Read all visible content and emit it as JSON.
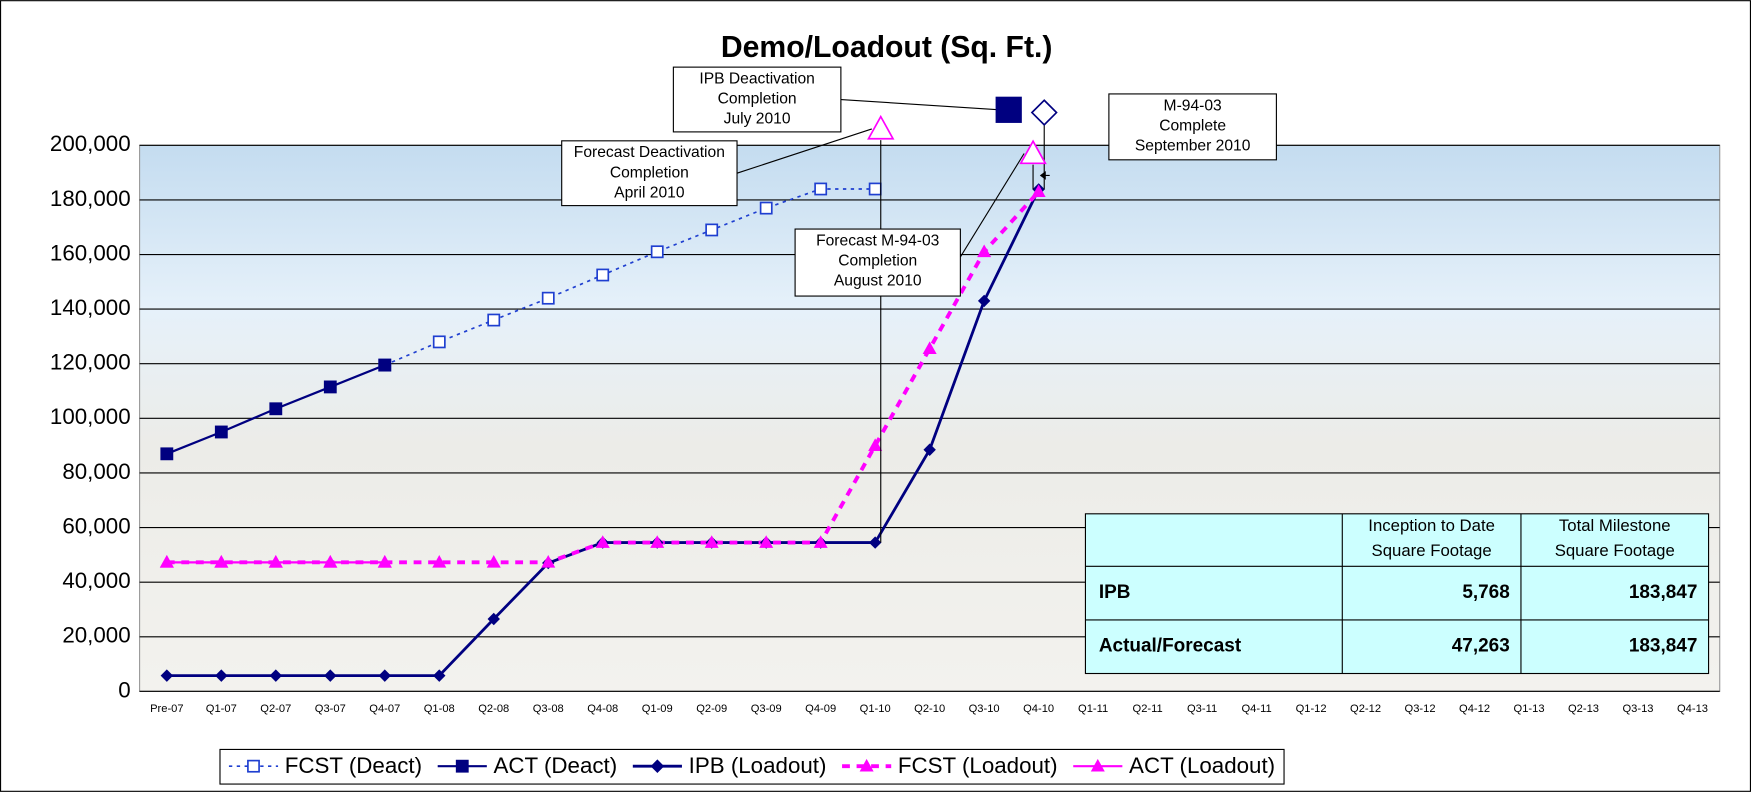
{
  "chart_data": {
    "type": "line",
    "title": "Demo/Loadout (Sq. Ft.)",
    "categories": [
      "Pre-07",
      "Q1-07",
      "Q2-07",
      "Q3-07",
      "Q4-07",
      "Q1-08",
      "Q2-08",
      "Q3-08",
      "Q4-08",
      "Q1-09",
      "Q2-09",
      "Q3-09",
      "Q4-09",
      "Q1-10",
      "Q2-10",
      "Q3-10",
      "Q4-10",
      "Q1-11",
      "Q2-11",
      "Q3-11",
      "Q4-11",
      "Q1-12",
      "Q2-12",
      "Q3-12",
      "Q4-12",
      "Q1-13",
      "Q2-13",
      "Q3-13",
      "Q4-13"
    ],
    "series": [
      {
        "name": "FCST (Deact)",
        "color": "#1f3fd0",
        "values": [
          null,
          null,
          null,
          null,
          119500,
          128000,
          136000,
          144000,
          152500,
          161000,
          169000,
          177000,
          184000,
          184000,
          null,
          null,
          null,
          null,
          null,
          null,
          null,
          null,
          null,
          null,
          null,
          null,
          null,
          null,
          null
        ]
      },
      {
        "name": "ACT (Deact)",
        "color": "#000080",
        "values": [
          87000,
          95000,
          103500,
          111500,
          119500,
          null,
          null,
          null,
          null,
          null,
          null,
          null,
          null,
          null,
          null,
          null,
          null,
          null,
          null,
          null,
          null,
          null,
          null,
          null,
          null,
          null,
          null,
          null,
          null
        ]
      },
      {
        "name": "IPB (Loadout)",
        "color": "#000080",
        "values": [
          5768,
          5768,
          5768,
          5768,
          5768,
          5768,
          26500,
          47000,
          54500,
          54500,
          54500,
          54500,
          54500,
          54500,
          88500,
          143000,
          183847,
          null,
          null,
          null,
          null,
          null,
          null,
          null,
          null,
          null,
          null,
          null,
          null
        ]
      },
      {
        "name": "FCST (Loadout)",
        "color": "#ff00ff",
        "values": [
          47263,
          47263,
          47263,
          47263,
          47263,
          47263,
          47263,
          47263,
          54500,
          54500,
          54500,
          54500,
          54500,
          90000,
          125500,
          161000,
          183000,
          null,
          null,
          null,
          null,
          null,
          null,
          null,
          null,
          null,
          null,
          null,
          null
        ]
      },
      {
        "name": "ACT (Loadout)",
        "color": "#ff00ff",
        "values": [
          47263,
          47263,
          47263,
          47263,
          47263,
          null,
          null,
          null,
          null,
          null,
          null,
          null,
          null,
          null,
          null,
          null,
          null,
          null,
          null,
          null,
          null,
          null,
          null,
          null,
          null,
          null,
          null,
          null,
          null
        ]
      }
    ],
    "ylim": [
      0,
      200000
    ],
    "yticks": [
      0,
      {
        "value": 20000,
        "label": "20,000"
      },
      {
        "value": 40000,
        "label": "40,000"
      },
      {
        "value": 60000,
        "label": "60,000"
      },
      {
        "value": 80000,
        "label": "80,000"
      },
      {
        "value": 100000,
        "label": "100,000"
      },
      {
        "value": 120000,
        "label": "120,000"
      },
      {
        "value": 140000,
        "label": "140,000"
      },
      {
        "value": 160000,
        "label": "160,000"
      },
      {
        "value": 180000,
        "label": "180,000"
      },
      {
        "value": 200000,
        "label": "200,000"
      }
    ],
    "grid": true,
    "annotations": [
      {
        "lines": [
          "IPB Deactivation",
          "Completion",
          "July 2010"
        ],
        "category": "Q3-10",
        "value": 213000,
        "marker": "square",
        "color": "#000080"
      },
      {
        "lines": [
          "Forecast Deactivation",
          "Completion",
          "April 2010"
        ],
        "category": "Q1-10",
        "value": 206000,
        "marker": "triangle",
        "color": "#ff00ff"
      },
      {
        "lines": [
          "M-94-03",
          "Complete",
          "September 2010"
        ],
        "category": "Q4-10",
        "value": 212000,
        "marker": "diamond",
        "color": "#000080"
      },
      {
        "lines": [
          "Forecast M-94-03",
          "Completion",
          "August 2010"
        ],
        "category": "Q4-10",
        "value": 197000,
        "marker": "triangle",
        "color": "#ff00ff"
      }
    ],
    "table": {
      "header": [
        "Inception to Date Square Footage",
        "Total Milestone Square Footage"
      ],
      "rows": [
        [
          "IPB",
          "5,768",
          "183,847"
        ],
        [
          "Actual/Forecast",
          "47,263",
          "183,847"
        ]
      ]
    }
  }
}
